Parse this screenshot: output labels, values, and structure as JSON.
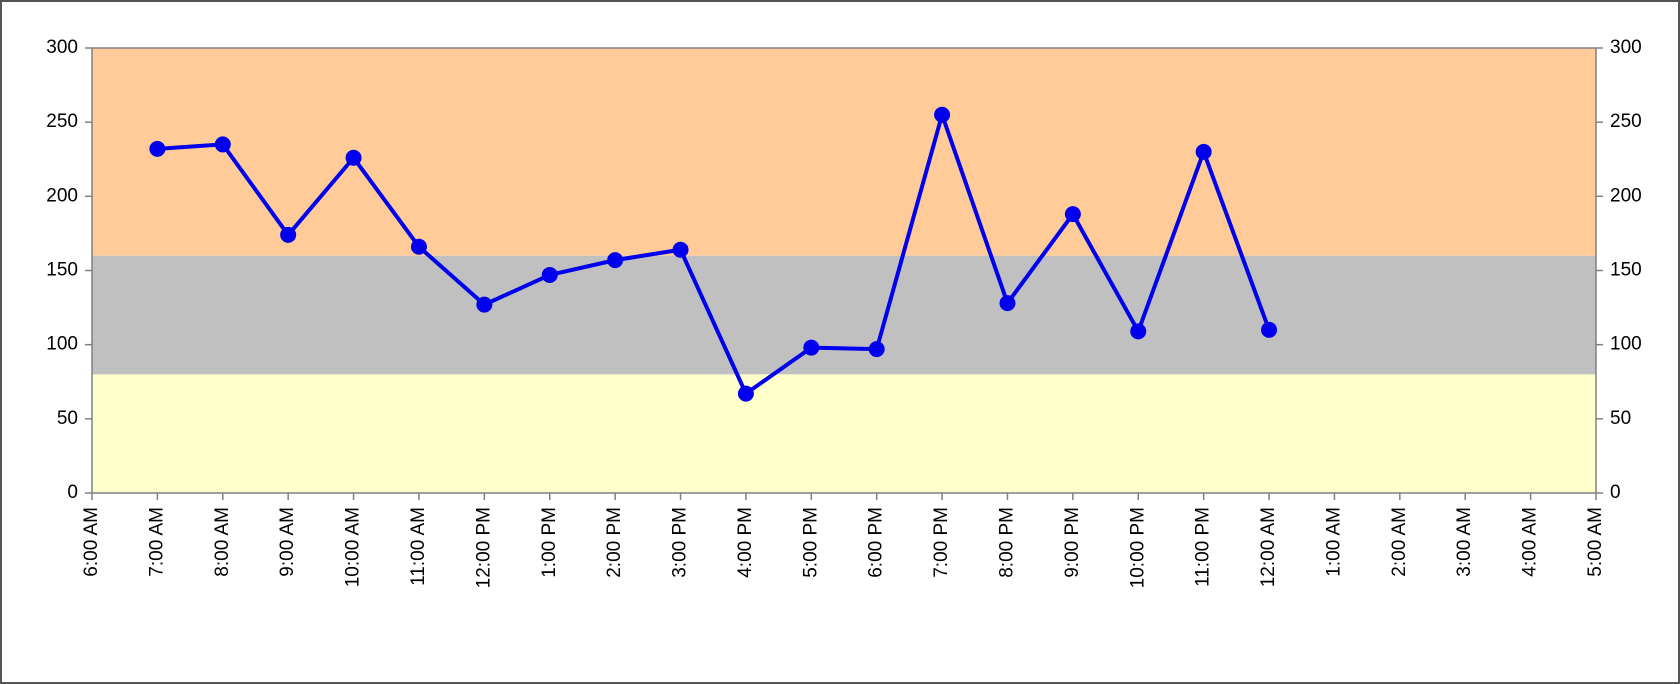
{
  "chart_data": {
    "type": "line",
    "categories": [
      "6:00 AM",
      "7:00 AM",
      "8:00 AM",
      "9:00 AM",
      "10:00 AM",
      "11:00 AM",
      "12:00 PM",
      "1:00 PM",
      "2:00 PM",
      "3:00 PM",
      "4:00 PM",
      "5:00 PM",
      "6:00 PM",
      "7:00 PM",
      "8:00 PM",
      "9:00 PM",
      "10:00 PM",
      "11:00 PM",
      "12:00 AM",
      "1:00 AM",
      "2:00 AM",
      "3:00 AM",
      "4:00 AM",
      "5:00 AM"
    ],
    "series": [
      {
        "color": "#0000ee",
        "values": [
          null,
          232,
          235,
          174,
          226,
          166,
          127,
          147,
          157,
          164,
          67,
          98,
          97,
          255,
          128,
          188,
          109,
          230,
          110,
          null,
          null,
          null,
          null,
          null
        ]
      }
    ],
    "ylim": [
      0,
      300
    ],
    "yticks": [
      0,
      50,
      100,
      150,
      200,
      250,
      300
    ],
    "y2lim": [
      0,
      300
    ],
    "y2ticks": [
      0,
      50,
      100,
      150,
      200,
      250,
      300
    ],
    "bands": [
      {
        "from": 0,
        "to": 80,
        "color": "#ffffcc"
      },
      {
        "from": 80,
        "to": 160,
        "color": "#c0c0c0"
      },
      {
        "from": 160,
        "to": 300,
        "color": "#ffcc99"
      }
    ],
    "plot_background": "#ffffff"
  }
}
